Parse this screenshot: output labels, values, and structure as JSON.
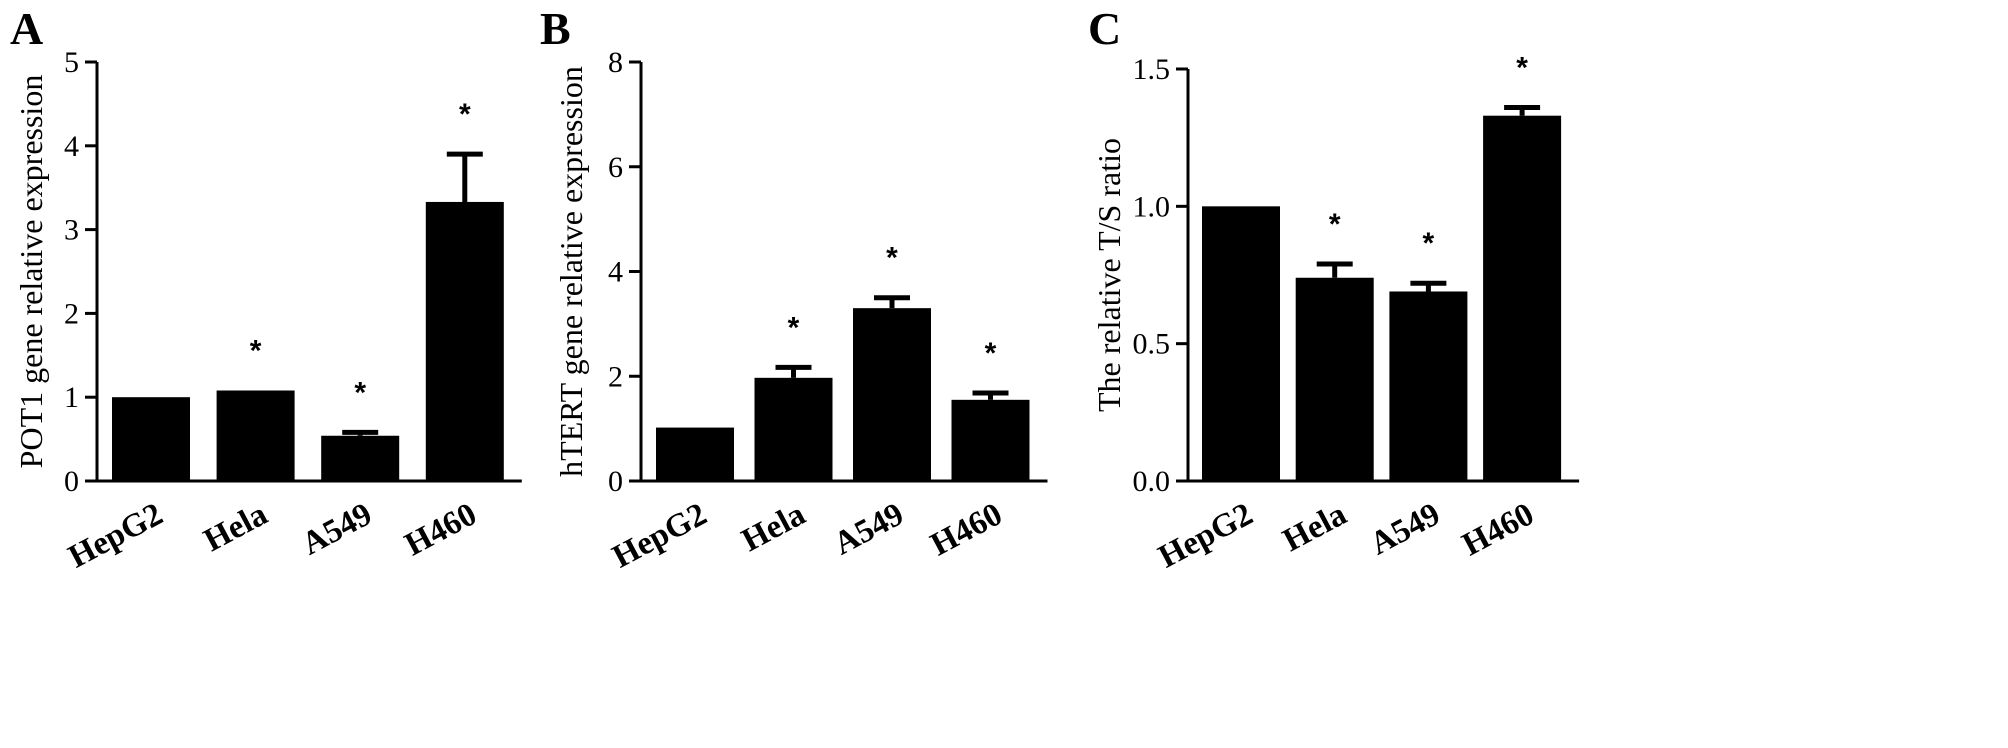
{
  "chart_data": [
    {
      "type": "bar",
      "panel": "A",
      "categories": [
        "HepG2",
        "Hela",
        "A549",
        "H460"
      ],
      "values": [
        1.0,
        1.08,
        0.54,
        3.33
      ],
      "errors": [
        0,
        0,
        0.04,
        0.57
      ],
      "significance": [
        "",
        "*",
        "*",
        "*"
      ],
      "ylabel": "POT1 gene relative expression",
      "ylim": [
        0,
        5
      ],
      "yticks": [
        "0",
        "1",
        "2",
        "3",
        "4",
        "5"
      ],
      "ytick_values": [
        0,
        1,
        2,
        3,
        4,
        5
      ],
      "colors": {
        "bar": "#000000"
      }
    },
    {
      "type": "bar",
      "panel": "B",
      "categories": [
        "HepG2",
        "Hela",
        "A549",
        "H460"
      ],
      "values": [
        1.02,
        1.97,
        3.3,
        1.55
      ],
      "errors": [
        0,
        0.2,
        0.2,
        0.13
      ],
      "significance": [
        "",
        "*",
        "*",
        "*"
      ],
      "ylabel": "hTERT gene relative expression",
      "ylim": [
        0,
        8
      ],
      "yticks": [
        "0",
        "2",
        "4",
        "6",
        "8"
      ],
      "ytick_values": [
        0,
        2,
        4,
        6,
        8
      ],
      "colors": {
        "bar": "#000000"
      }
    },
    {
      "type": "bar",
      "panel": "C",
      "categories": [
        "HepG2",
        "Hela",
        "A549",
        "H460"
      ],
      "values": [
        1.0,
        0.74,
        0.69,
        1.33
      ],
      "errors": [
        0,
        0.05,
        0.03,
        0.03
      ],
      "significance": [
        "",
        "*",
        "*",
        "*"
      ],
      "ylabel": "The relative T/S ratio",
      "ylim": [
        0,
        1.5
      ],
      "yticks": [
        "0.0",
        "0.5",
        "1.0",
        "1.5"
      ],
      "ytick_values": [
        0,
        0.5,
        1.0,
        1.5
      ],
      "colors": {
        "bar": "#000000"
      }
    }
  ]
}
